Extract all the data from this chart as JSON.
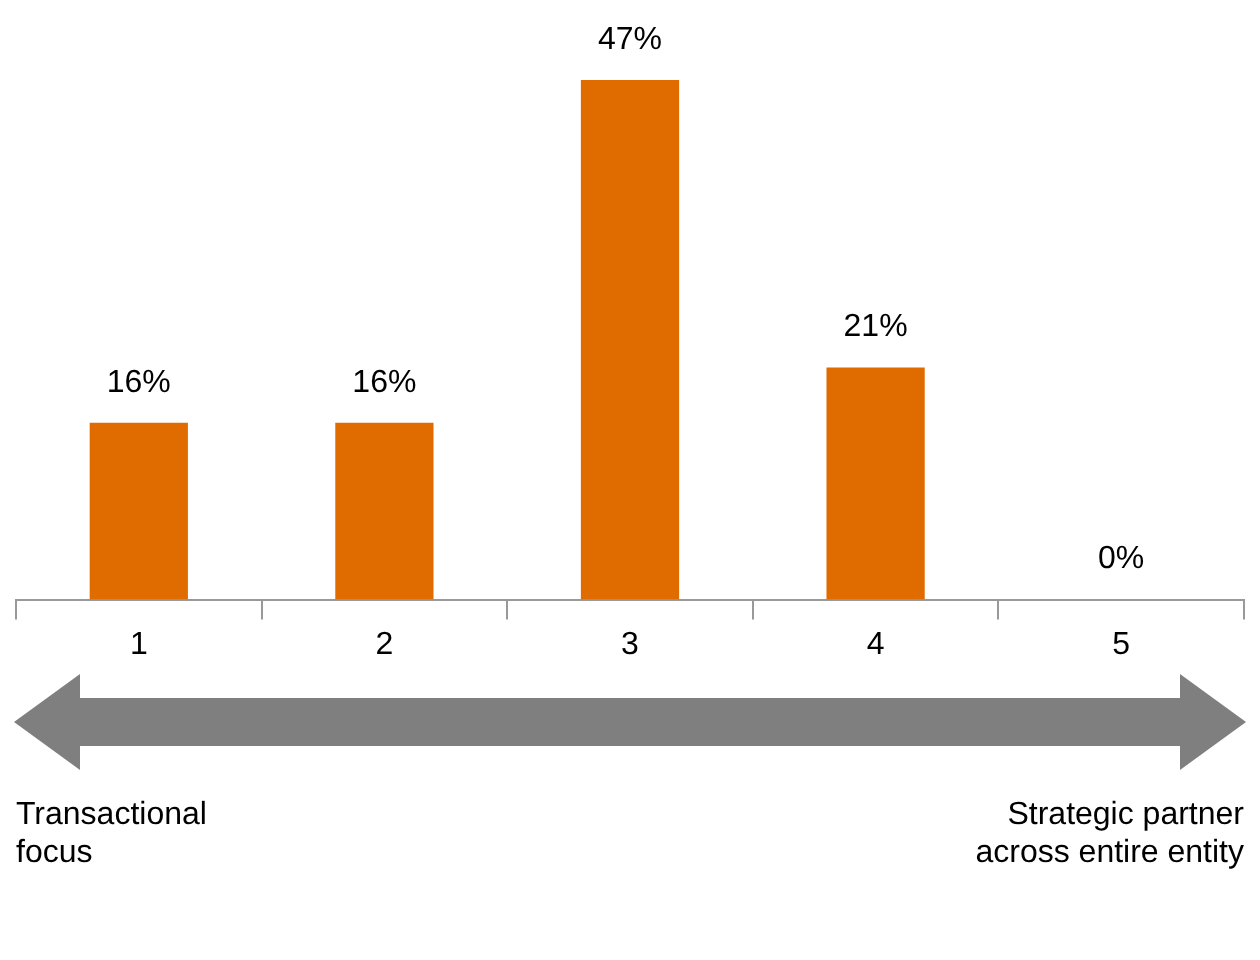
{
  "chart_data": {
    "type": "bar",
    "categories": [
      "1",
      "2",
      "3",
      "4",
      "5"
    ],
    "values": [
      16,
      16,
      47,
      21,
      0
    ],
    "color": "#e06c00",
    "value_labels": [
      "16%",
      "16%",
      "47%",
      "21%",
      "0%"
    ],
    "annotations": [
      "Transactional focus",
      "Strategic partner across entire entity"
    ],
    "grid": false,
    "legend": false
  }
}
